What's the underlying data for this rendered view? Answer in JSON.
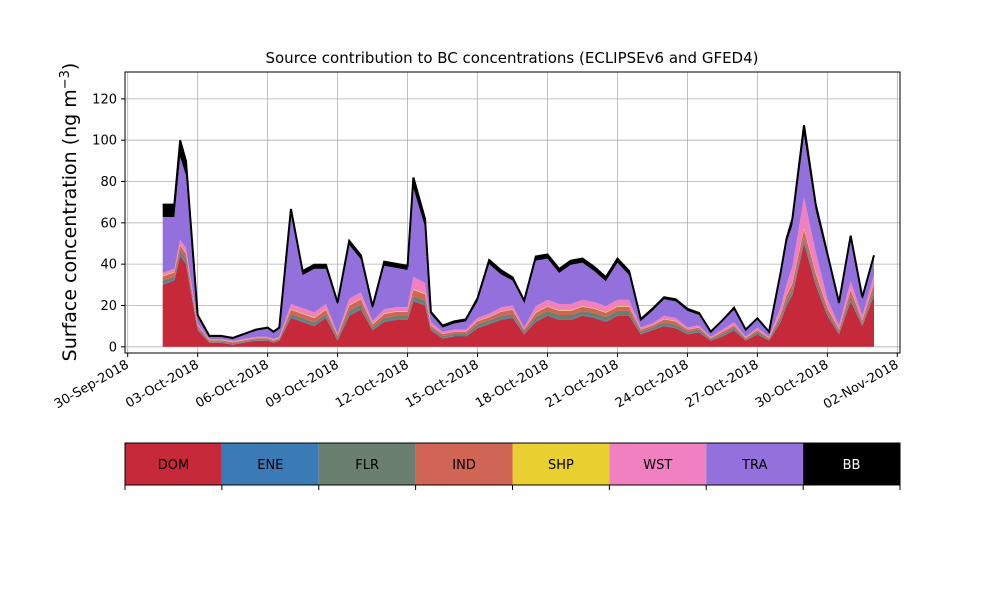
{
  "chart_data": {
    "type": "area",
    "stacked": true,
    "title": "Source contribution to BC concentrations (ECLIPSEv6 and GFED4)",
    "ylabel": "Surface concentration (ng m",
    "ylabel_unit_sup": "−3",
    "ylabel_suffix": ")",
    "xlim": [
      "2018-09-30",
      "2018-11-02"
    ],
    "ylim": [
      -3,
      133
    ],
    "grid": true,
    "x_ticks": [
      "2018-09-30",
      "2018-10-03",
      "2018-10-06",
      "2018-10-09",
      "2018-10-12",
      "2018-10-15",
      "2018-10-18",
      "2018-10-21",
      "2018-10-24",
      "2018-10-27",
      "2018-10-30",
      "2018-11-02"
    ],
    "x_tick_labels": [
      "30-Sep-2018",
      "03-Oct-2018",
      "06-Oct-2018",
      "09-Oct-2018",
      "12-Oct-2018",
      "15-Oct-2018",
      "18-Oct-2018",
      "21-Oct-2018",
      "24-Oct-2018",
      "27-Oct-2018",
      "30-Oct-2018",
      "02-Nov-2018"
    ],
    "y_ticks": [
      0,
      20,
      40,
      60,
      80,
      100,
      120
    ],
    "y_tick_labels": [
      "0",
      "20",
      "40",
      "60",
      "80",
      "100",
      "120"
    ],
    "x": [
      "2018-10-01T12:00",
      "2018-10-02T00:00",
      "2018-10-02T06:00",
      "2018-10-02T12:00",
      "2018-10-03T00:00",
      "2018-10-03T12:00",
      "2018-10-04T00:00",
      "2018-10-04T12:00",
      "2018-10-05T00:00",
      "2018-10-05T12:00",
      "2018-10-06T00:00",
      "2018-10-06T06:00",
      "2018-10-06T12:00",
      "2018-10-07T00:00",
      "2018-10-07T12:00",
      "2018-10-08T00:00",
      "2018-10-08T12:00",
      "2018-10-09T00:00",
      "2018-10-09T12:00",
      "2018-10-10T00:00",
      "2018-10-10T12:00",
      "2018-10-11T00:00",
      "2018-10-11T12:00",
      "2018-10-12T00:00",
      "2018-10-12T06:00",
      "2018-10-12T18:00",
      "2018-10-13T00:00",
      "2018-10-13T12:00",
      "2018-10-14T00:00",
      "2018-10-14T12:00",
      "2018-10-15T00:00",
      "2018-10-15T12:00",
      "2018-10-16T00:00",
      "2018-10-16T12:00",
      "2018-10-17T00:00",
      "2018-10-17T12:00",
      "2018-10-18T00:00",
      "2018-10-18T12:00",
      "2018-10-19T00:00",
      "2018-10-19T12:00",
      "2018-10-20T00:00",
      "2018-10-20T12:00",
      "2018-10-21T00:00",
      "2018-10-21T12:00",
      "2018-10-22T00:00",
      "2018-10-22T12:00",
      "2018-10-23T00:00",
      "2018-10-23T12:00",
      "2018-10-24T00:00",
      "2018-10-24T12:00",
      "2018-10-25T00:00",
      "2018-10-25T12:00",
      "2018-10-26T00:00",
      "2018-10-26T12:00",
      "2018-10-27T00:00",
      "2018-10-27T12:00",
      "2018-10-28T00:00",
      "2018-10-28T06:00",
      "2018-10-28T12:00",
      "2018-10-29T00:00",
      "2018-10-29T12:00",
      "2018-10-30T00:00",
      "2018-10-30T12:00",
      "2018-10-31T00:00",
      "2018-10-31T12:00",
      "2018-11-01T00:00"
    ],
    "series": [
      {
        "name": "DOM",
        "color": "#c62a3a",
        "values": [
          30,
          32,
          44,
          40,
          8,
          2,
          2,
          1,
          2,
          3,
          3,
          2,
          3,
          14,
          12,
          10,
          14,
          3,
          15,
          18,
          8,
          12,
          13,
          13,
          22,
          20,
          8,
          4,
          5,
          5,
          9,
          11,
          13,
          14,
          6,
          12,
          15,
          13,
          13,
          15,
          14,
          12,
          15,
          15,
          6,
          8,
          10,
          9,
          6,
          7,
          3,
          5,
          8,
          3,
          6,
          3,
          12,
          20,
          25,
          50,
          30,
          15,
          6,
          22,
          10,
          25
        ]
      },
      {
        "name": "ENE",
        "color": "#3a7ab5",
        "values": [
          0.5,
          0.5,
          0.6,
          0.6,
          0.3,
          0.2,
          0.2,
          0.2,
          0.2,
          0.2,
          0.2,
          0.2,
          0.2,
          0.4,
          0.4,
          0.4,
          0.4,
          0.3,
          0.5,
          0.5,
          0.3,
          0.4,
          0.4,
          0.4,
          0.5,
          0.5,
          0.3,
          0.2,
          0.2,
          0.2,
          0.3,
          0.3,
          0.4,
          0.4,
          0.3,
          0.4,
          0.4,
          0.4,
          0.4,
          0.4,
          0.4,
          0.4,
          0.4,
          0.4,
          0.3,
          0.3,
          0.3,
          0.3,
          0.3,
          0.3,
          0.2,
          0.2,
          0.3,
          0.2,
          0.2,
          0.2,
          0.4,
          0.5,
          0.6,
          0.8,
          0.6,
          0.4,
          0.3,
          0.5,
          0.3,
          0.5
        ]
      },
      {
        "name": "FLR",
        "color": "#6b7f6e",
        "values": [
          1.5,
          1.5,
          2,
          2,
          1,
          0.5,
          0.5,
          0.5,
          0.5,
          0.5,
          0.5,
          0.5,
          0.5,
          1.5,
          1.5,
          1.5,
          1.5,
          1,
          2,
          2,
          1,
          1.5,
          1.5,
          1.5,
          2,
          2,
          1,
          1,
          1,
          1,
          1.5,
          1.5,
          1.5,
          1.5,
          1,
          2,
          2,
          2,
          2,
          2,
          2,
          2,
          2,
          2,
          1,
          1,
          1.5,
          1.5,
          1,
          1,
          0.5,
          1,
          1,
          0.5,
          1,
          0.5,
          1.5,
          2,
          2,
          2,
          2,
          1.5,
          1,
          2,
          1,
          2
        ]
      },
      {
        "name": "IND",
        "color": "#d06555",
        "values": [
          2,
          2,
          2.5,
          2.5,
          1,
          0.5,
          0.5,
          0.5,
          0.5,
          0.5,
          0.5,
          0.5,
          0.5,
          2,
          2,
          2,
          2,
          1,
          2.5,
          2.5,
          1.5,
          2,
          2,
          2,
          3,
          3,
          1,
          1,
          1,
          1,
          1.5,
          1.5,
          2,
          2,
          1,
          2,
          2,
          2,
          2,
          2,
          2,
          2,
          2,
          2,
          1,
          1,
          1.5,
          1.5,
          1,
          1,
          0.5,
          1,
          1,
          0.5,
          1,
          0.5,
          2,
          2.5,
          3,
          4,
          3,
          2,
          1,
          3,
          1.5,
          3
        ]
      },
      {
        "name": "SHP",
        "color": "#e8d030",
        "values": [
          0.3,
          0.3,
          0.3,
          0.3,
          0.1,
          0.1,
          0.1,
          0.1,
          0.1,
          0.1,
          0.1,
          0.1,
          0.1,
          0.3,
          0.3,
          0.3,
          0.3,
          0.1,
          0.3,
          0.3,
          0.2,
          0.3,
          0.3,
          0.3,
          0.4,
          0.4,
          0.1,
          0.1,
          0.1,
          0.1,
          0.2,
          0.2,
          0.2,
          0.2,
          0.1,
          0.3,
          0.3,
          0.3,
          0.3,
          0.3,
          0.3,
          0.3,
          0.3,
          0.3,
          0.1,
          0.1,
          0.2,
          0.2,
          0.1,
          0.1,
          0.1,
          0.1,
          0.1,
          0.1,
          0.1,
          0.1,
          0.3,
          0.3,
          0.3,
          0.5,
          0.4,
          0.3,
          0.1,
          0.3,
          0.2,
          0.3
        ]
      },
      {
        "name": "WST",
        "color": "#f080c0",
        "values": [
          1.5,
          1.5,
          2.5,
          2.5,
          1,
          0.5,
          0.5,
          0.5,
          0.5,
          0.5,
          0.5,
          0.5,
          0.5,
          2.5,
          2.5,
          2.5,
          2.5,
          1,
          3,
          3,
          1.5,
          2,
          2,
          2,
          6,
          5,
          1.5,
          1,
          1,
          1,
          1.5,
          1.5,
          2,
          2,
          1,
          3,
          3,
          3,
          3,
          3,
          3,
          3,
          3,
          3,
          1,
          1,
          1.5,
          1.5,
          1,
          1,
          0.5,
          1,
          1.5,
          0.5,
          1,
          0.5,
          3,
          5,
          8,
          15,
          10,
          4,
          2,
          4,
          2,
          4
        ]
      },
      {
        "name": "TRA",
        "color": "#9370db",
        "values": [
          27,
          25,
          40,
          35,
          3,
          1,
          1,
          1,
          2,
          3,
          4,
          3,
          4,
          44,
          16,
          21,
          17,
          14,
          26,
          16,
          6,
          21,
          19,
          18,
          43,
          27,
          4,
          2,
          3,
          4,
          8,
          24,
          16,
          12,
          12,
          22,
          20,
          15,
          19,
          18,
          15,
          12,
          18,
          12,
          3,
          6,
          8,
          8,
          8,
          5,
          2,
          4,
          6,
          3,
          4,
          2,
          15,
          20,
          20,
          30,
          20,
          20,
          10,
          20,
          8,
          8
        ]
      },
      {
        "name": "BB",
        "color": "#000000",
        "values": [
          6,
          6,
          8,
          7,
          1,
          0.5,
          0.5,
          0.5,
          0.5,
          0.5,
          0.5,
          0.5,
          0.5,
          2,
          2,
          2,
          2,
          1,
          2,
          2,
          1,
          2,
          2,
          2,
          5,
          4,
          1,
          1,
          1,
          1,
          1.5,
          2,
          2,
          1.5,
          1,
          2,
          2,
          2,
          2,
          2,
          2,
          2,
          2,
          2,
          1,
          1,
          1,
          1,
          1,
          1,
          0.5,
          0.5,
          1,
          0.5,
          0.5,
          0.5,
          2,
          2,
          3,
          5,
          3,
          2,
          1,
          2,
          1,
          1.5
        ]
      }
    ]
  }
}
